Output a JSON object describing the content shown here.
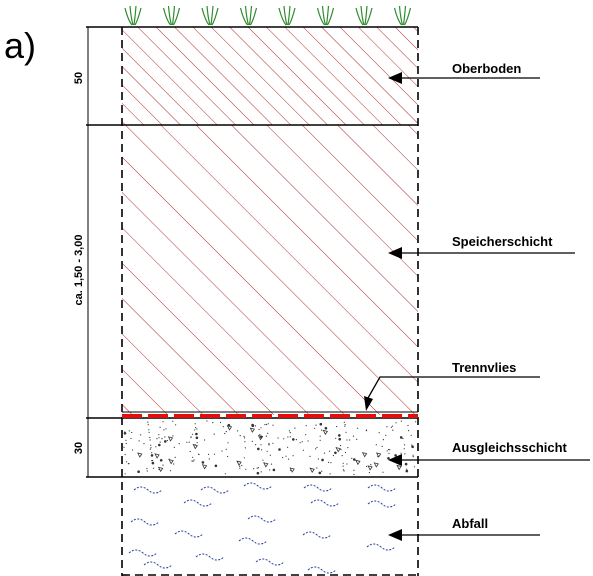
{
  "figure": {
    "panel_label": "a)",
    "layers": [
      {
        "id": "oberboden",
        "label": "Oberboden",
        "dimension": "50"
      },
      {
        "id": "speicherschicht",
        "label": "Speicherschicht",
        "dimension": "ca. 1,50 - 3,00"
      },
      {
        "id": "trennvlies",
        "label": "Trennvlies",
        "dimension": ""
      },
      {
        "id": "ausgleichsschicht",
        "label": "Ausgleichsschicht",
        "dimension": "30"
      },
      {
        "id": "abfall",
        "label": "Abfall",
        "dimension": ""
      }
    ],
    "colors": {
      "line": "#000000",
      "hatch": "#b03030",
      "membrane": "#e01010",
      "grass": "#2e8b2e",
      "waste_wave": "#2a3fa0",
      "gravel": "#333333"
    },
    "icons": [
      "grass-icon",
      "arrow-icon"
    ]
  }
}
